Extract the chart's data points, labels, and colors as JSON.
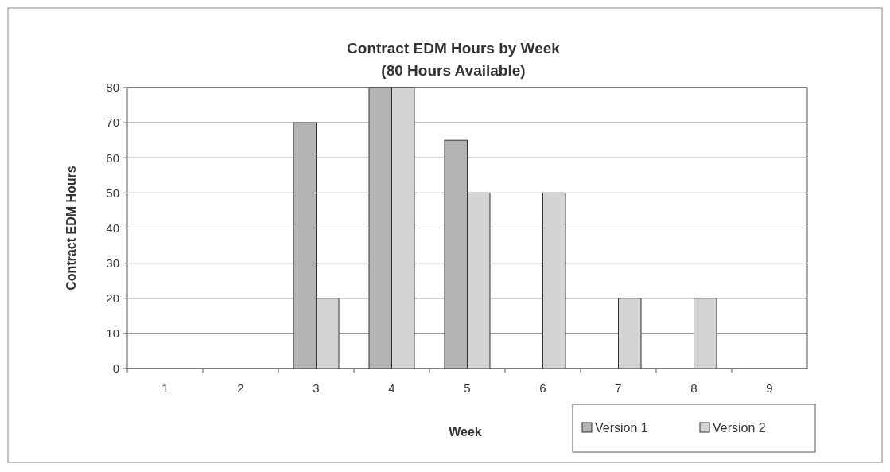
{
  "chart_data": {
    "type": "bar",
    "title": "Contract EDM Hours by Week",
    "subtitle": "(80 Hours Available)",
    "xlabel": "Week",
    "ylabel": "Contract EDM Hours",
    "categories": [
      "1",
      "2",
      "3",
      "4",
      "5",
      "6",
      "7",
      "8",
      "9"
    ],
    "series": [
      {
        "name": "Version 1",
        "color": "#b4b4b4",
        "values": [
          0,
          0,
          70,
          80,
          65,
          0,
          0,
          0,
          0
        ]
      },
      {
        "name": "Version 2",
        "color": "#d4d4d4",
        "values": [
          0,
          0,
          20,
          80,
          50,
          50,
          20,
          20,
          0
        ]
      }
    ],
    "ylim": [
      0,
      80
    ],
    "yticks": [
      0,
      10,
      20,
      30,
      40,
      50,
      60,
      70,
      80
    ],
    "grid": "y",
    "legend": "bottom right"
  }
}
